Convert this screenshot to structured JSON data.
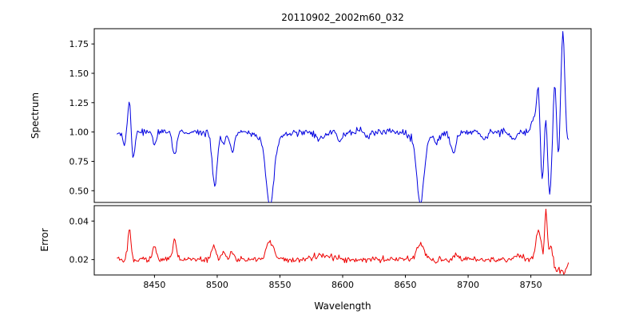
{
  "figure": {
    "background": "#ffffff"
  },
  "chart_data": {
    "type": "line",
    "title": "20110902_2002m60_032",
    "xlabel": "Wavelength",
    "x_range": [
      8420,
      8780
    ],
    "xlim": [
      8402,
      8798
    ],
    "xticks": [
      8450,
      8500,
      8550,
      8600,
      8650,
      8700,
      8750
    ],
    "xtick_labels": [
      "8450",
      "8500",
      "8550",
      "8600",
      "8650",
      "8700",
      "8750"
    ],
    "grid": false,
    "legend": "none",
    "seed": 42,
    "step": 0.75,
    "panels": [
      {
        "name": "spectrum",
        "ylabel": "Spectrum",
        "color": "#0000e0",
        "line_width": 1,
        "ylim": [
          0.4,
          1.88
        ],
        "yticks": [
          0.5,
          0.75,
          1.0,
          1.25,
          1.5,
          1.75
        ],
        "ytick_labels": [
          "0.50",
          "0.75",
          "1.00",
          "1.25",
          "1.50",
          "1.75"
        ],
        "baseline": 1.0,
        "noise_sigma": 0.014,
        "features_note": "gaussian features [center_wavelength, amplitude, sigma]; continuum ~1.0; Ca II triplet absorption at 8498/8542/8662; noisy edge artifacts near 8750-8780 reaching max 1.82 and min 0.45",
        "features": [
          [
            8426,
            -0.1,
            1.2
          ],
          [
            8430,
            0.27,
            1.1
          ],
          [
            8433,
            -0.22,
            1.3
          ],
          [
            8450,
            -0.1,
            1.5
          ],
          [
            8466,
            -0.2,
            1.6
          ],
          [
            8498,
            -0.45,
            2.0
          ],
          [
            8505,
            -0.1,
            1.5
          ],
          [
            8512,
            -0.16,
            1.8
          ],
          [
            8542,
            -0.57,
            3.0
          ],
          [
            8542,
            -0.07,
            8.0
          ],
          [
            8582,
            -0.06,
            3.0
          ],
          [
            8598,
            -0.07,
            2.0
          ],
          [
            8620,
            -0.05,
            2.0
          ],
          [
            8662,
            -0.54,
            2.8
          ],
          [
            8662,
            -0.06,
            7.0
          ],
          [
            8675,
            -0.08,
            2.0
          ],
          [
            8688,
            -0.18,
            2.2
          ],
          [
            8713,
            -0.07,
            2.0
          ],
          [
            8736,
            -0.06,
            2.0
          ],
          [
            8752,
            0.12,
            1.5
          ],
          [
            8756,
            0.4,
            1.4
          ],
          [
            8759,
            -0.45,
            1.4
          ],
          [
            8762,
            0.25,
            1.2
          ],
          [
            8765,
            -0.55,
            1.6
          ],
          [
            8769,
            0.42,
            1.3
          ],
          [
            8772,
            -0.25,
            1.2
          ],
          [
            8775.5,
            0.85,
            1.5
          ],
          [
            8779,
            -0.1,
            1.0
          ]
        ]
      },
      {
        "name": "error",
        "ylabel": "Error",
        "color": "#ee0000",
        "line_width": 1,
        "ylim": [
          0.012,
          0.048
        ],
        "yticks": [
          0.02,
          0.04
        ],
        "ytick_labels": [
          "0.02",
          "0.04"
        ],
        "baseline": 0.02,
        "noise_sigma": 0.0008,
        "features_note": "error spectrum ~0.02 with spikes at strong-line / edge wavelengths, max ~0.046 near 8762",
        "features": [
          [
            8430,
            0.016,
            1.2
          ],
          [
            8450,
            0.008,
            1.2
          ],
          [
            8466,
            0.011,
            1.3
          ],
          [
            8497,
            0.007,
            1.8
          ],
          [
            8505,
            0.005,
            1.5
          ],
          [
            8512,
            0.004,
            1.5
          ],
          [
            8542,
            0.01,
            2.8
          ],
          [
            8585,
            0.002,
            6.0
          ],
          [
            8662,
            0.008,
            3.0
          ],
          [
            8690,
            0.003,
            2.0
          ],
          [
            8740,
            0.002,
            3.0
          ],
          [
            8756,
            0.015,
            2.0
          ],
          [
            8762,
            0.026,
            1.0
          ],
          [
            8766,
            0.008,
            1.2
          ],
          [
            8770,
            -0.004,
            2.0
          ],
          [
            8776,
            -0.006,
            3.0
          ]
        ]
      }
    ]
  }
}
